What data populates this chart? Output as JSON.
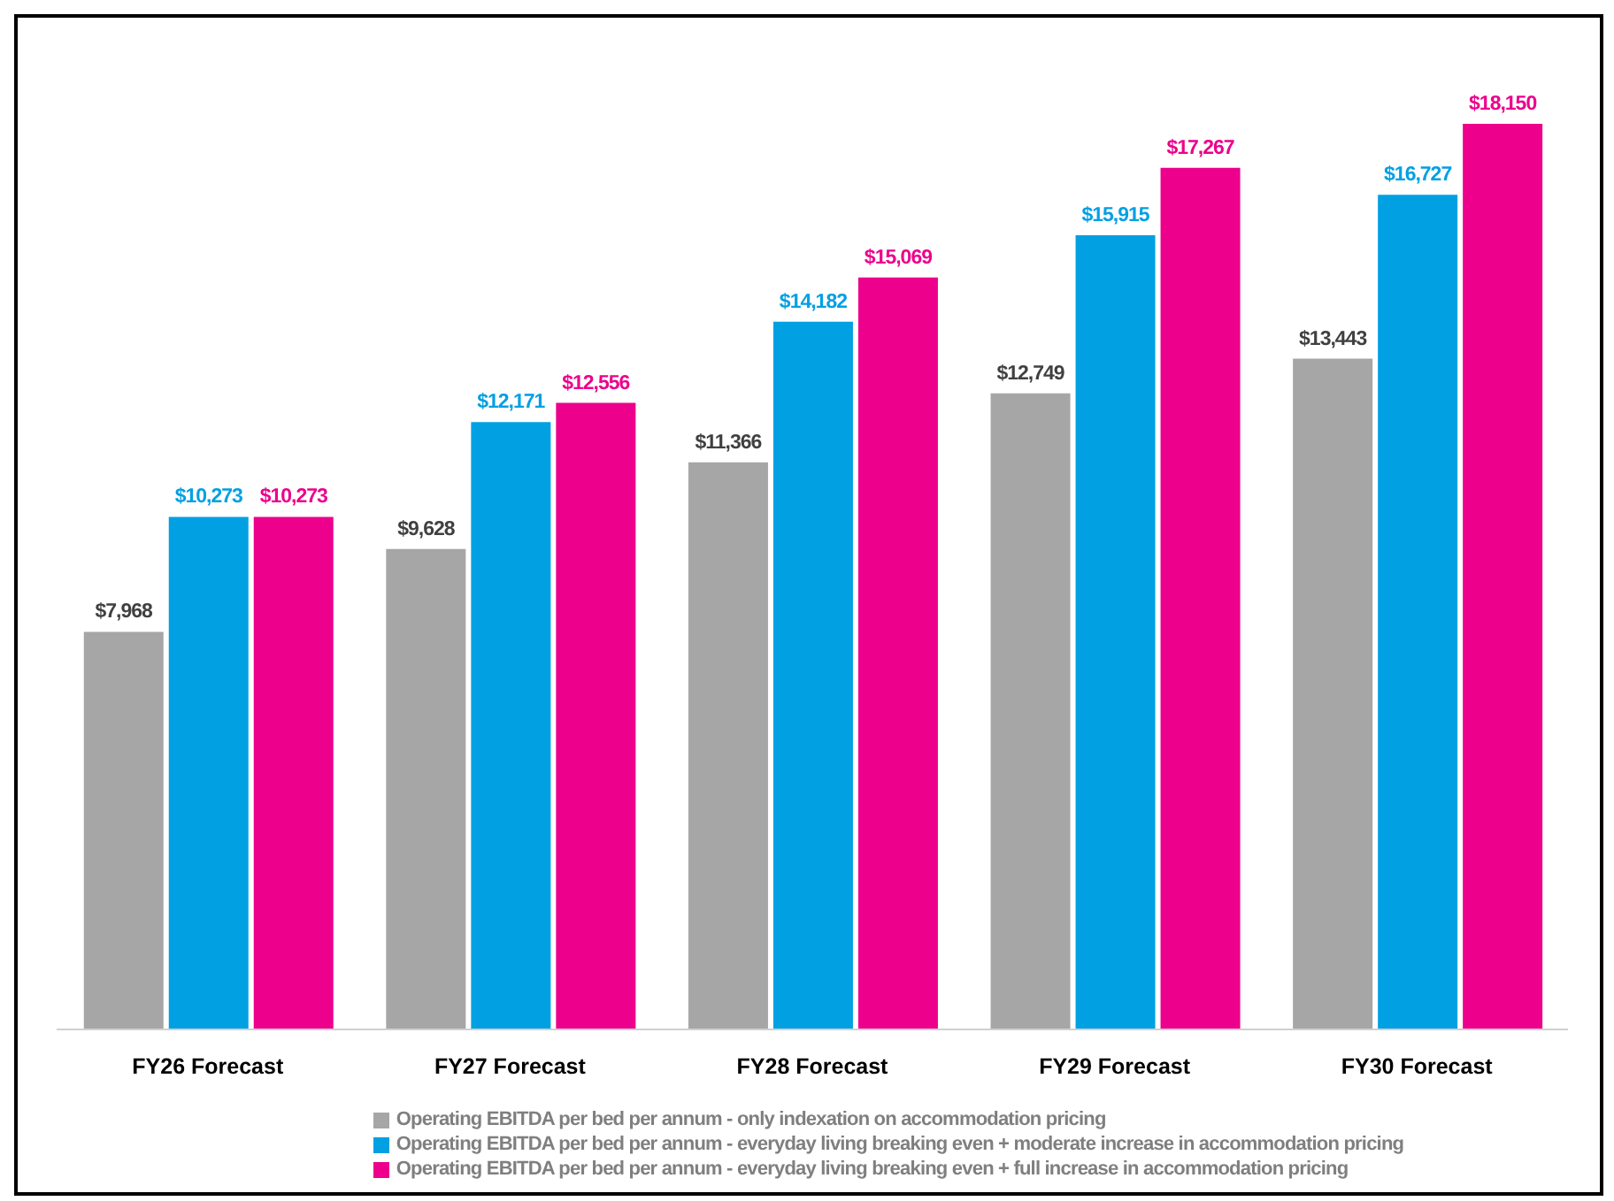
{
  "chart_data": {
    "type": "bar",
    "categories": [
      "FY26 Forecast",
      "FY27 Forecast",
      "FY28 Forecast",
      "FY29 Forecast",
      "FY30 Forecast"
    ],
    "series": [
      {
        "name": "Operating EBITDA per bed per annum - only indexation on accommodation pricing",
        "color": "#a6a6a6",
        "values": [
          7968,
          9628,
          11366,
          12749,
          13443
        ],
        "value_labels": [
          "$7,968",
          "$9,628",
          "$11,366",
          "$12,749",
          "$13,443"
        ]
      },
      {
        "name": "Operating EBITDA per bed per annum - everyday living breaking even + moderate increase in accommodation pricing",
        "color": "#00a0e3",
        "values": [
          10273,
          12171,
          14182,
          15915,
          16727
        ],
        "value_labels": [
          "$10,273",
          "$12,171",
          "$14,182",
          "$15,915",
          "$16,727"
        ]
      },
      {
        "name": "Operating EBITDA per bed per annum - everyday living breaking even + full increase in accommodation pricing",
        "color": "#ec008c",
        "values": [
          10273,
          12556,
          15069,
          17267,
          18150
        ],
        "value_labels": [
          "$10,273",
          "$12,556",
          "$15,069",
          "$17,267",
          "$18,150"
        ]
      }
    ],
    "grid": false,
    "legend": "bottom"
  }
}
